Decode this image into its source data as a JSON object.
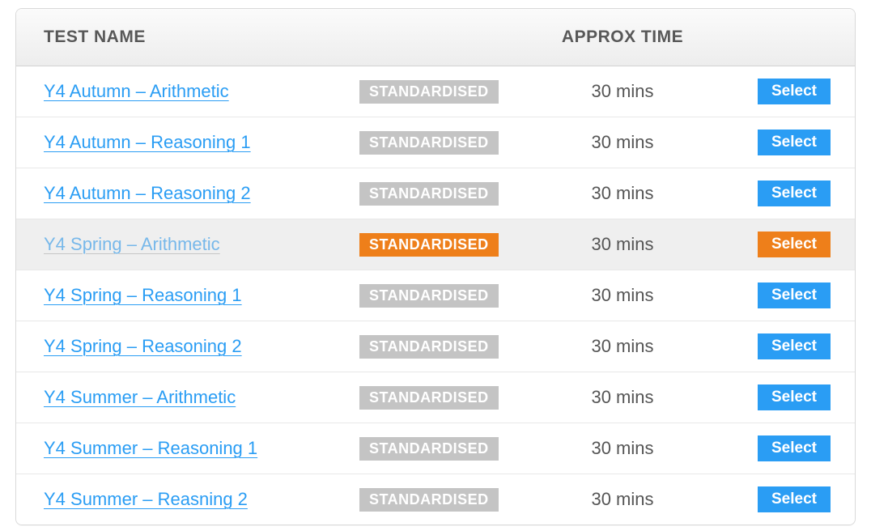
{
  "colors": {
    "link": "#2a9df4",
    "link_muted": "#77b8ea",
    "text": "#585858",
    "time_text": "#555555",
    "badge_default_bg": "#c4c4c4",
    "accent_orange": "#ee7f1a",
    "button_blue": "#2a9df4",
    "row_highlight_bg": "#efefef",
    "border": "#e8e8e8",
    "header_border": "#d2d2d2"
  },
  "header": {
    "name_label": "TEST NAME",
    "time_label": "APPROX TIME"
  },
  "badge_text": "STANDARDISED",
  "select_label": "Select",
  "rows": [
    {
      "name": "Y4 Autumn – Arithmetic",
      "time": "30 mins",
      "highlighted": false
    },
    {
      "name": "Y4 Autumn – Reasoning 1",
      "time": "30 mins",
      "highlighted": false
    },
    {
      "name": "Y4 Autumn – Reasoning 2",
      "time": "30 mins",
      "highlighted": false
    },
    {
      "name": "Y4 Spring – Arithmetic",
      "time": "30 mins",
      "highlighted": true
    },
    {
      "name": "Y4 Spring – Reasoning 1",
      "time": "30 mins",
      "highlighted": false
    },
    {
      "name": "Y4 Spring – Reasoning 2",
      "time": "30 mins",
      "highlighted": false
    },
    {
      "name": "Y4 Summer – Arithmetic",
      "time": "30 mins",
      "highlighted": false
    },
    {
      "name": "Y4 Summer – Reasoning 1",
      "time": "30 mins",
      "highlighted": false
    },
    {
      "name": "Y4 Summer – Reasning 2",
      "time": "30 mins",
      "highlighted": false
    }
  ]
}
